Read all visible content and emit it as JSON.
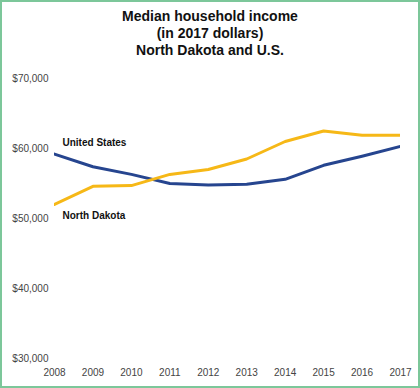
{
  "chart_data": {
    "type": "line",
    "title": "Median household income",
    "subtitle": "(in 2017 dollars)",
    "subtitle2": "North Dakota and U.S.",
    "x": [
      2008,
      2009,
      2010,
      2011,
      2012,
      2013,
      2014,
      2015,
      2016,
      2017
    ],
    "xlim": [
      2008,
      2017
    ],
    "xticks": [
      2008,
      2009,
      2010,
      2011,
      2012,
      2013,
      2014,
      2015,
      2016,
      2017
    ],
    "ylim": [
      30000,
      70000
    ],
    "yticks": [
      {
        "value": 30000,
        "label": "$30,000"
      },
      {
        "value": 40000,
        "label": "$40,000"
      },
      {
        "value": 50000,
        "label": "$50,000"
      },
      {
        "value": 60000,
        "label": "$60,000"
      },
      {
        "value": 70000,
        "label": "$70,000"
      }
    ],
    "grid": false,
    "series": [
      {
        "name": "United States",
        "color": "#26458f",
        "values": [
          59200,
          57400,
          56300,
          55000,
          54800,
          54900,
          55600,
          57600,
          58900,
          60300
        ]
      },
      {
        "name": "North Dakota",
        "color": "#f6b817",
        "values": [
          52000,
          54600,
          54700,
          56300,
          57000,
          58500,
          61000,
          62500,
          61900,
          61900
        ]
      }
    ]
  }
}
